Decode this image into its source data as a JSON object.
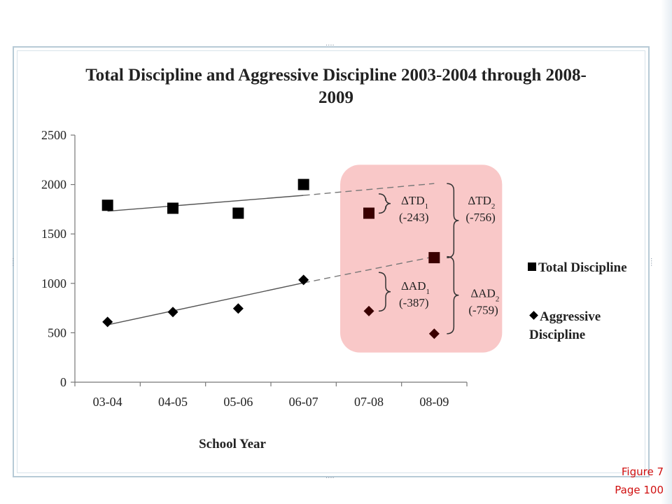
{
  "chart_data": {
    "type": "scatter",
    "title": "Total Discipline and Aggressive Discipline 2003-2004 through 2008-2009",
    "xlabel": "School Year",
    "ylabel": "",
    "categories": [
      "03-04",
      "04-05",
      "05-06",
      "06-07",
      "07-08",
      "08-09"
    ],
    "ylim": [
      0,
      2500
    ],
    "yticks": [
      0,
      500,
      1000,
      1500,
      2000,
      2500
    ],
    "grid": false,
    "legend_position": "right",
    "series": [
      {
        "name": "Total Discipline",
        "marker": "square",
        "values": [
          1790,
          1760,
          1710,
          2000,
          1710,
          1260
        ],
        "trend_fit_start": 1730,
        "trend_fit_end": 1890,
        "trend_projection_end": 2010
      },
      {
        "name": "Aggressive Discipline",
        "marker": "diamond",
        "values": [
          610,
          710,
          745,
          1035,
          720,
          490
        ],
        "trend_fit_start": 580,
        "trend_fit_end": 1005,
        "trend_projection_end": 1270
      }
    ],
    "annotations": [
      {
        "symbol": "ΔTD",
        "subscript": "1",
        "value": "(-243)"
      },
      {
        "symbol": "ΔTD",
        "subscript": "2",
        "value": "(-756)"
      },
      {
        "symbol": "ΔAD",
        "subscript": "1",
        "value": "(-387)"
      },
      {
        "symbol": "ΔAD",
        "subscript": "2",
        "value": "(-759)"
      }
    ],
    "highlight_color": "#f9c8c8"
  },
  "caption": {
    "figure": "Figure 7",
    "page": "Page 100"
  },
  "colors": {
    "accent": "#d01010",
    "frame": "#b7cad6"
  }
}
